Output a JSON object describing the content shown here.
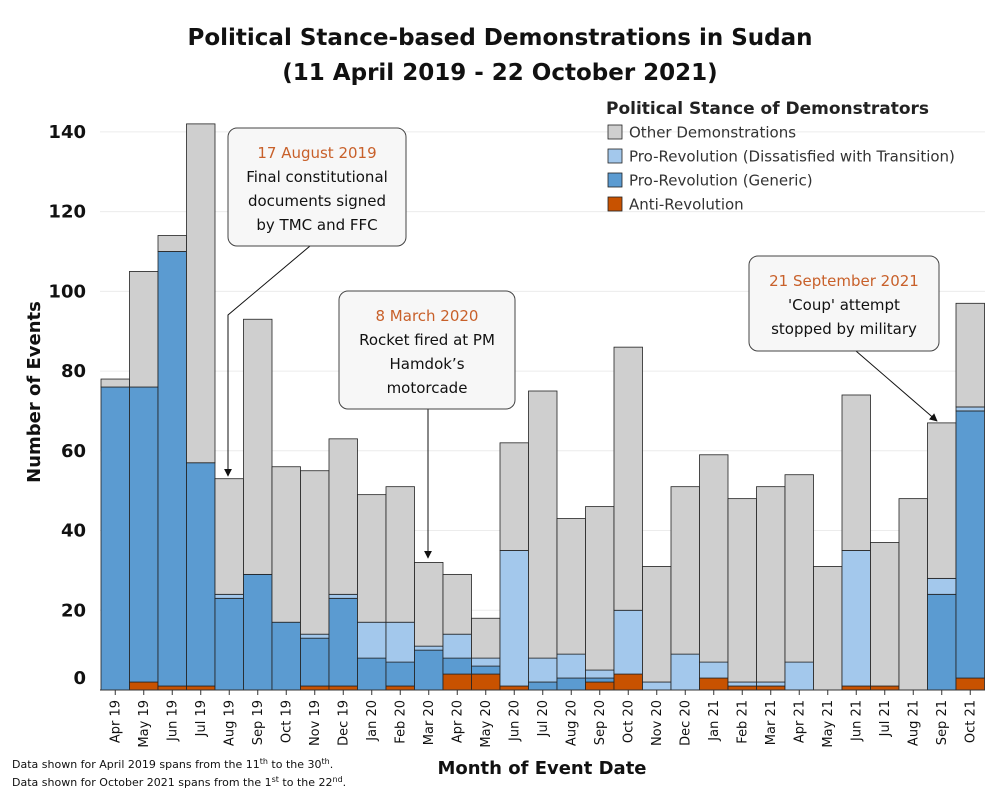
{
  "chart_data": {
    "type": "bar",
    "stacked": true,
    "title_line1": "Political Stance-based Demonstrations in Sudan",
    "title_line2": "(11 April 2019 - 22 October 2021)",
    "xlabel": "Month of Event Date",
    "ylabel": "Number of Events",
    "ylim": [
      0,
      150
    ],
    "yticks": [
      0,
      20,
      40,
      60,
      80,
      100,
      120,
      140
    ],
    "grid": true,
    "legend": {
      "title": "Political Stance of Demonstrators",
      "placement": "top-right",
      "entries": [
        "Other Demonstrations",
        "Pro-Revolution (Dissatisfied with Transition)",
        "Pro-Revolution (Generic)",
        "Anti-Revolution"
      ]
    },
    "categories": [
      "Apr 19",
      "May 19",
      "Jun 19",
      "Jul 19",
      "Aug 19",
      "Sep 19",
      "Oct 19",
      "Nov 19",
      "Dec 19",
      "Jan 20",
      "Feb 20",
      "Mar 20",
      "Apr 20",
      "May 20",
      "Jun 20",
      "Jul 20",
      "Aug 20",
      "Sep 20",
      "Oct 20",
      "Nov 20",
      "Dec 20",
      "Jan 21",
      "Feb 21",
      "Mar 21",
      "Apr 21",
      "May 21",
      "Jun 21",
      "Jul 21",
      "Aug 21",
      "Sep 21",
      "Oct 21"
    ],
    "series": [
      {
        "name": "Anti-Revolution",
        "color": "#c85200",
        "values": [
          0,
          2,
          1,
          1,
          0,
          0,
          0,
          1,
          1,
          0,
          1,
          0,
          4,
          4,
          1,
          0,
          0,
          2,
          4,
          0,
          0,
          3,
          1,
          1,
          0,
          0,
          1,
          1,
          0,
          0,
          3
        ]
      },
      {
        "name": "Pro-Revolution (Generic)",
        "color": "#5b9bd1",
        "values": [
          76,
          74,
          109,
          56,
          23,
          29,
          17,
          12,
          22,
          8,
          6,
          10,
          4,
          2,
          0,
          2,
          3,
          1,
          0,
          0,
          0,
          0,
          0,
          0,
          0,
          0,
          0,
          0,
          0,
          24,
          67
        ]
      },
      {
        "name": "Pro-Revolution (Dissatisfied with Transition)",
        "color": "#a3c8ec",
        "values": [
          0,
          0,
          0,
          0,
          1,
          0,
          0,
          1,
          1,
          9,
          10,
          1,
          6,
          2,
          34,
          6,
          6,
          2,
          16,
          2,
          9,
          4,
          1,
          1,
          7,
          0,
          34,
          0,
          0,
          4,
          1
        ]
      },
      {
        "name": "Other Demonstrations",
        "color": "#cfcfcf",
        "values": [
          2,
          29,
          4,
          85,
          29,
          64,
          39,
          41,
          39,
          32,
          34,
          21,
          15,
          10,
          27,
          67,
          34,
          41,
          66,
          29,
          42,
          52,
          46,
          49,
          47,
          31,
          39,
          36,
          48,
          39,
          26
        ]
      }
    ],
    "annotations": [
      {
        "date": "17 August 2019",
        "lines": [
          "Final constitutional",
          "documents signed",
          "by TMC and FFC"
        ],
        "category": "Aug 19"
      },
      {
        "date": "8 March 2020",
        "lines": [
          "Rocket fired at PM",
          "Hamdok’s",
          "motorcade"
        ],
        "category": "Mar 20"
      },
      {
        "date": "21 September 2021",
        "lines": [
          "'Coup' attempt",
          "stopped by military"
        ],
        "category": "Sep 21"
      }
    ],
    "notes": [
      [
        "Data shown for April 2019 spans from the 11",
        "th",
        " to the 30",
        "th",
        "."
      ],
      [
        "Data shown for October 2021 spans from the 1",
        "st",
        " to the 22",
        "nd",
        "."
      ]
    ]
  }
}
